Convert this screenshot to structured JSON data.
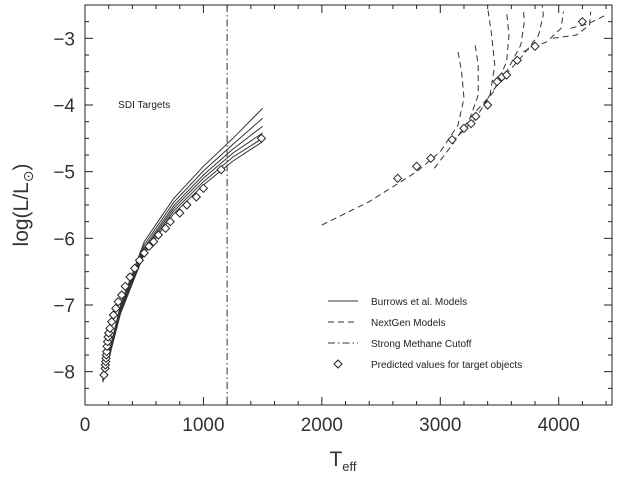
{
  "chart_data": {
    "type": "line",
    "title": "",
    "xlabel": "T",
    "xlabel_sub": "eff",
    "ylabel": "log(L/L",
    "ylabel_symbol": "⊙",
    "ylabel_suffix": ")",
    "xlim": [
      0,
      4450
    ],
    "ylim": [
      -8.5,
      -2.5
    ],
    "xticks": [
      {
        "v": 0,
        "label": "0"
      },
      {
        "v": 1000,
        "label": "1000"
      },
      {
        "v": 2000,
        "label": "2000"
      },
      {
        "v": 3000,
        "label": "3000"
      },
      {
        "v": 4000,
        "label": "4000"
      }
    ],
    "yticks": [
      {
        "v": -3,
        "label": "−3"
      },
      {
        "v": -4,
        "label": "−4"
      },
      {
        "v": -5,
        "label": "−5"
      },
      {
        "v": -6,
        "label": "−6"
      },
      {
        "v": -7,
        "label": "−7"
      },
      {
        "v": -8,
        "label": "−8"
      }
    ],
    "annotation": {
      "text": "SDI Targets",
      "x": 500,
      "y": -4.0
    },
    "methane_cutoff_x": 1200,
    "burrows_curves": [
      [
        [
          150,
          -8.1
        ],
        [
          300,
          -7.0
        ],
        [
          500,
          -6.05
        ],
        [
          750,
          -5.4
        ],
        [
          1000,
          -4.92
        ],
        [
          1250,
          -4.5
        ],
        [
          1500,
          -4.05
        ]
      ],
      [
        [
          150,
          -8.12
        ],
        [
          300,
          -7.04
        ],
        [
          500,
          -6.1
        ],
        [
          750,
          -5.46
        ],
        [
          1000,
          -4.99
        ],
        [
          1250,
          -4.59
        ],
        [
          1500,
          -4.2
        ]
      ],
      [
        [
          150,
          -8.13
        ],
        [
          300,
          -7.07
        ],
        [
          500,
          -6.14
        ],
        [
          750,
          -5.51
        ],
        [
          1000,
          -5.05
        ],
        [
          1250,
          -4.66
        ],
        [
          1500,
          -4.32
        ]
      ],
      [
        [
          150,
          -8.14
        ],
        [
          300,
          -7.09
        ],
        [
          500,
          -6.17
        ],
        [
          750,
          -5.55
        ],
        [
          1000,
          -5.1
        ],
        [
          1250,
          -4.72
        ],
        [
          1500,
          -4.42
        ]
      ],
      [
        [
          150,
          -8.15
        ],
        [
          300,
          -7.11
        ],
        [
          500,
          -6.2
        ],
        [
          750,
          -5.59
        ],
        [
          1000,
          -5.15
        ],
        [
          1250,
          -4.78
        ],
        [
          1500,
          -4.5
        ]
      ],
      [
        [
          150,
          -8.16
        ],
        [
          300,
          -7.13
        ],
        [
          500,
          -6.23
        ],
        [
          750,
          -5.63
        ],
        [
          1000,
          -5.2
        ],
        [
          1250,
          -4.84
        ],
        [
          1500,
          -4.55
        ]
      ]
    ],
    "nextgen_curves": [
      [
        [
          2000,
          -5.8
        ],
        [
          2400,
          -5.45
        ],
        [
          2800,
          -5.0
        ],
        [
          3000,
          -4.7
        ],
        [
          3150,
          -4.3
        ],
        [
          3200,
          -3.9
        ],
        [
          3180,
          -3.5
        ],
        [
          3150,
          -3.2
        ]
      ],
      [
        [
          2950,
          -4.95
        ],
        [
          3100,
          -4.6
        ],
        [
          3250,
          -4.2
        ],
        [
          3320,
          -3.85
        ],
        [
          3320,
          -3.4
        ],
        [
          3290,
          -3.05
        ]
      ],
      [
        [
          3100,
          -4.55
        ],
        [
          3300,
          -4.2
        ],
        [
          3420,
          -3.85
        ],
        [
          3460,
          -3.4
        ],
        [
          3430,
          -2.9
        ],
        [
          3400,
          -2.55
        ]
      ],
      [
        [
          3250,
          -4.2
        ],
        [
          3450,
          -3.8
        ],
        [
          3560,
          -3.35
        ],
        [
          3580,
          -2.95
        ],
        [
          3560,
          -2.6
        ]
      ],
      [
        [
          3400,
          -3.9
        ],
        [
          3560,
          -3.5
        ],
        [
          3680,
          -3.1
        ],
        [
          3710,
          -2.75
        ],
        [
          3700,
          -2.55
        ]
      ],
      [
        [
          3550,
          -3.55
        ],
        [
          3700,
          -3.25
        ],
        [
          3830,
          -2.95
        ],
        [
          3870,
          -2.65
        ],
        [
          3860,
          -2.5
        ]
      ],
      [
        [
          3700,
          -3.2
        ],
        [
          3900,
          -3.05
        ],
        [
          4020,
          -2.85
        ],
        [
          4040,
          -2.6
        ]
      ],
      [
        [
          3950,
          -3.0
        ],
        [
          4150,
          -2.95
        ],
        [
          4260,
          -2.8
        ],
        [
          4270,
          -2.6
        ]
      ],
      [
        [
          4100,
          -2.85
        ],
        [
          4250,
          -2.78
        ],
        [
          4400,
          -2.65
        ]
      ]
    ],
    "targets": [
      [
        160,
        -8.05
      ],
      [
        170,
        -7.95
      ],
      [
        172,
        -7.9
      ],
      [
        175,
        -7.85
      ],
      [
        178,
        -7.8
      ],
      [
        180,
        -7.75
      ],
      [
        183,
        -7.7
      ],
      [
        186,
        -7.62
      ],
      [
        190,
        -7.55
      ],
      [
        195,
        -7.48
      ],
      [
        200,
        -7.42
      ],
      [
        210,
        -7.35
      ],
      [
        225,
        -7.25
      ],
      [
        240,
        -7.15
      ],
      [
        260,
        -7.05
      ],
      [
        280,
        -6.95
      ],
      [
        310,
        -6.85
      ],
      [
        340,
        -6.72
      ],
      [
        380,
        -6.58
      ],
      [
        420,
        -6.45
      ],
      [
        460,
        -6.33
      ],
      [
        500,
        -6.22
      ],
      [
        540,
        -6.12
      ],
      [
        580,
        -6.05
      ],
      [
        620,
        -5.95
      ],
      [
        680,
        -5.85
      ],
      [
        720,
        -5.75
      ],
      [
        800,
        -5.62
      ],
      [
        860,
        -5.5
      ],
      [
        940,
        -5.38
      ],
      [
        1000,
        -5.25
      ],
      [
        1150,
        -4.97
      ],
      [
        1490,
        -4.5
      ],
      [
        2640,
        -5.1
      ],
      [
        2800,
        -4.92
      ],
      [
        2920,
        -4.8
      ],
      [
        3100,
        -4.52
      ],
      [
        3200,
        -4.35
      ],
      [
        3260,
        -4.28
      ],
      [
        3300,
        -4.17
      ],
      [
        3400,
        -4.0
      ],
      [
        3480,
        -3.65
      ],
      [
        3520,
        -3.58
      ],
      [
        3560,
        -3.55
      ],
      [
        3650,
        -3.33
      ],
      [
        3800,
        -3.12
      ],
      [
        4200,
        -2.75
      ]
    ],
    "legend": {
      "placement": "bottom-right",
      "entries": [
        {
          "label": "Burrows et al. Models",
          "style": "solid"
        },
        {
          "label": "NextGen Models",
          "style": "dashed"
        },
        {
          "label": "Strong Methane Cutoff",
          "style": "dashdot"
        },
        {
          "label": "Predicted values for target objects",
          "style": "diamond"
        }
      ]
    },
    "grid": false
  }
}
